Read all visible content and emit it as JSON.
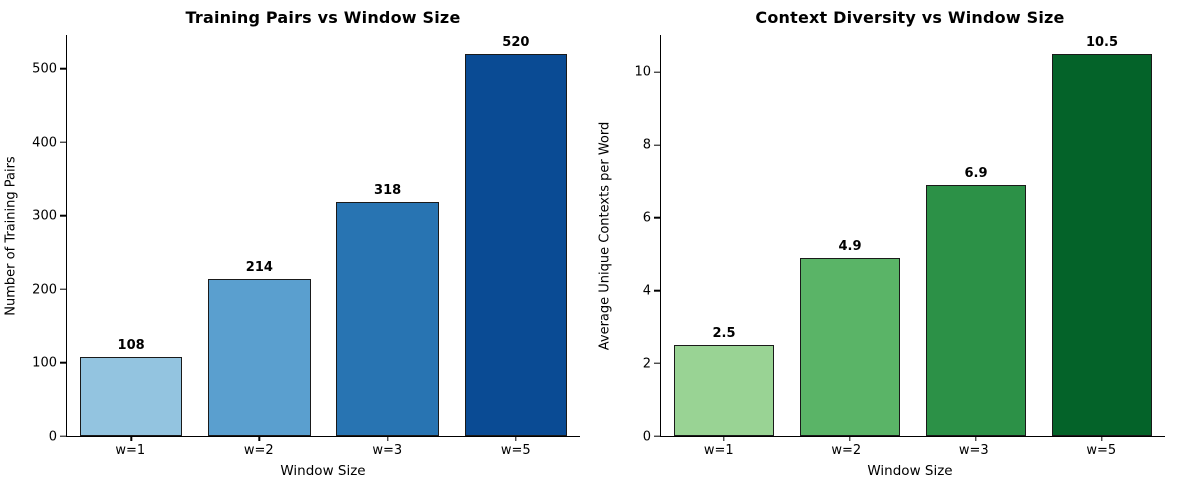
{
  "figure": {
    "background": "#ffffff",
    "text_color": "#000000",
    "bar_edge_color": "#1a1a1a"
  },
  "chart_data": [
    {
      "type": "bar",
      "title": "Training Pairs vs Window Size",
      "xlabel": "Window Size",
      "ylabel": "Number of Training Pairs",
      "categories": [
        "w=1",
        "w=2",
        "w=3",
        "w=5"
      ],
      "values": [
        108,
        214,
        318,
        520
      ],
      "value_labels": [
        "108",
        "214",
        "318",
        "520"
      ],
      "colors": [
        "#93c4e0",
        "#5a9fcf",
        "#2874b2",
        "#0a4b94"
      ],
      "ylim": [
        0,
        546
      ],
      "yticks": [
        0,
        100,
        200,
        300,
        400,
        500
      ],
      "grid": false,
      "legend": "none",
      "bar_width_fraction": 0.8
    },
    {
      "type": "bar",
      "title": "Context Diversity vs Window Size",
      "xlabel": "Window Size",
      "ylabel": "Average Unique Contexts per Word",
      "categories": [
        "w=1",
        "w=2",
        "w=3",
        "w=5"
      ],
      "values": [
        2.5,
        4.9,
        6.9,
        10.5
      ],
      "value_labels": [
        "2.5",
        "4.9",
        "6.9",
        "10.5"
      ],
      "colors": [
        "#99d394",
        "#5ab467",
        "#2c9147",
        "#046329"
      ],
      "ylim": [
        0,
        11.025
      ],
      "yticks": [
        0,
        2,
        4,
        6,
        8,
        10
      ],
      "grid": false,
      "legend": "none",
      "bar_width_fraction": 0.8
    }
  ]
}
